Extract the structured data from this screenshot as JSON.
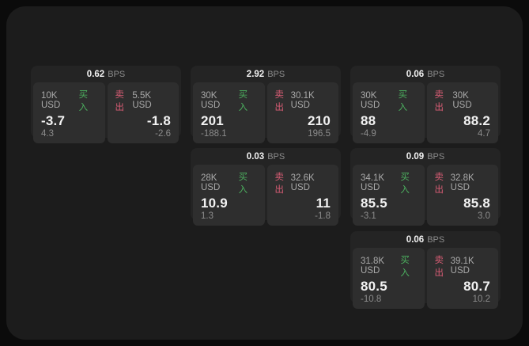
{
  "colors": {
    "outer_bg": "#0b0b0b",
    "panel_bg": "#1c1c1c",
    "card_bg": "#242424",
    "subpanel_bg": "#2e2e2e",
    "text_bright": "#f2f2f2",
    "text_label": "#aaaaaa",
    "text_dim": "#8c8c8c",
    "buy_green": "#4cb05f",
    "sell_red": "#d75c74"
  },
  "labels": {
    "bps_unit": "BPS",
    "buy": "买入",
    "sell": "卖出"
  },
  "cards": [
    {
      "row": 0,
      "col": 0,
      "bps": "0.62",
      "buy": {
        "size": "10K USD",
        "price": "-3.7",
        "delta": "4.3"
      },
      "sell": {
        "size": "5.5K USD",
        "price": "-1.8",
        "delta": "-2.6"
      }
    },
    {
      "row": 0,
      "col": 1,
      "bps": "2.92",
      "buy": {
        "size": "30K USD",
        "price": "201",
        "delta": "-188.1"
      },
      "sell": {
        "size": "30.1K USD",
        "price": "210",
        "delta": "196.5"
      }
    },
    {
      "row": 0,
      "col": 2,
      "bps": "0.06",
      "buy": {
        "size": "30K USD",
        "price": "88",
        "delta": "-4.9"
      },
      "sell": {
        "size": "30K USD",
        "price": "88.2",
        "delta": "4.7"
      }
    },
    {
      "row": 1,
      "col": 1,
      "bps": "0.03",
      "buy": {
        "size": "28K USD",
        "price": "10.9",
        "delta": "1.3"
      },
      "sell": {
        "size": "32.6K USD",
        "price": "11",
        "delta": "-1.8"
      }
    },
    {
      "row": 1,
      "col": 2,
      "bps": "0.09",
      "buy": {
        "size": "34.1K USD",
        "price": "85.5",
        "delta": "-3.1"
      },
      "sell": {
        "size": "32.8K USD",
        "price": "85.8",
        "delta": "3.0"
      }
    },
    {
      "row": 2,
      "col": 2,
      "bps": "0.06",
      "buy": {
        "size": "31.8K USD",
        "price": "80.5",
        "delta": "-10.8"
      },
      "sell": {
        "size": "39.1K USD",
        "price": "80.7",
        "delta": "10.2"
      }
    }
  ]
}
